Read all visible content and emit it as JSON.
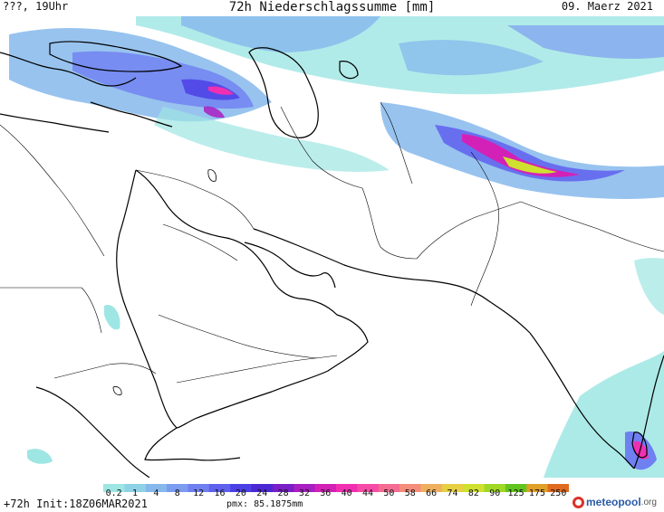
{
  "header": {
    "left": "???, 19Uhr",
    "title": "72h Niederschlagssumme [mm]",
    "right": "09. Maerz 2021"
  },
  "legend": {
    "ticks": [
      "0.2",
      "1",
      "4",
      "8",
      "12",
      "16",
      "20",
      "24",
      "28",
      "32",
      "36",
      "40",
      "44",
      "50",
      "58",
      "66",
      "74",
      "82",
      "90",
      "125",
      "175",
      "250"
    ],
    "colors": [
      "#9ee6e3",
      "#8fd2e6",
      "#86b8ec",
      "#7c9cf0",
      "#6f80f1",
      "#5f60ee",
      "#4b3fe6",
      "#4a28d2",
      "#7a1ec8",
      "#a81fc2",
      "#d321b7",
      "#f02fb1",
      "#f64ba6",
      "#f56c92",
      "#f48d7b",
      "#eeb05e",
      "#e6cf43",
      "#cfe02f",
      "#9fd925",
      "#62c51f",
      "#e0a028",
      "#e06a1f"
    ]
  },
  "footer": {
    "left": "+72h Init:18Z06MAR2021",
    "mid": "pmx: 85.1875mm",
    "logo_name": "meteopool",
    "logo_tld": ".org"
  },
  "map_icons": {
    "coast": "coastline",
    "border": "country-border"
  }
}
